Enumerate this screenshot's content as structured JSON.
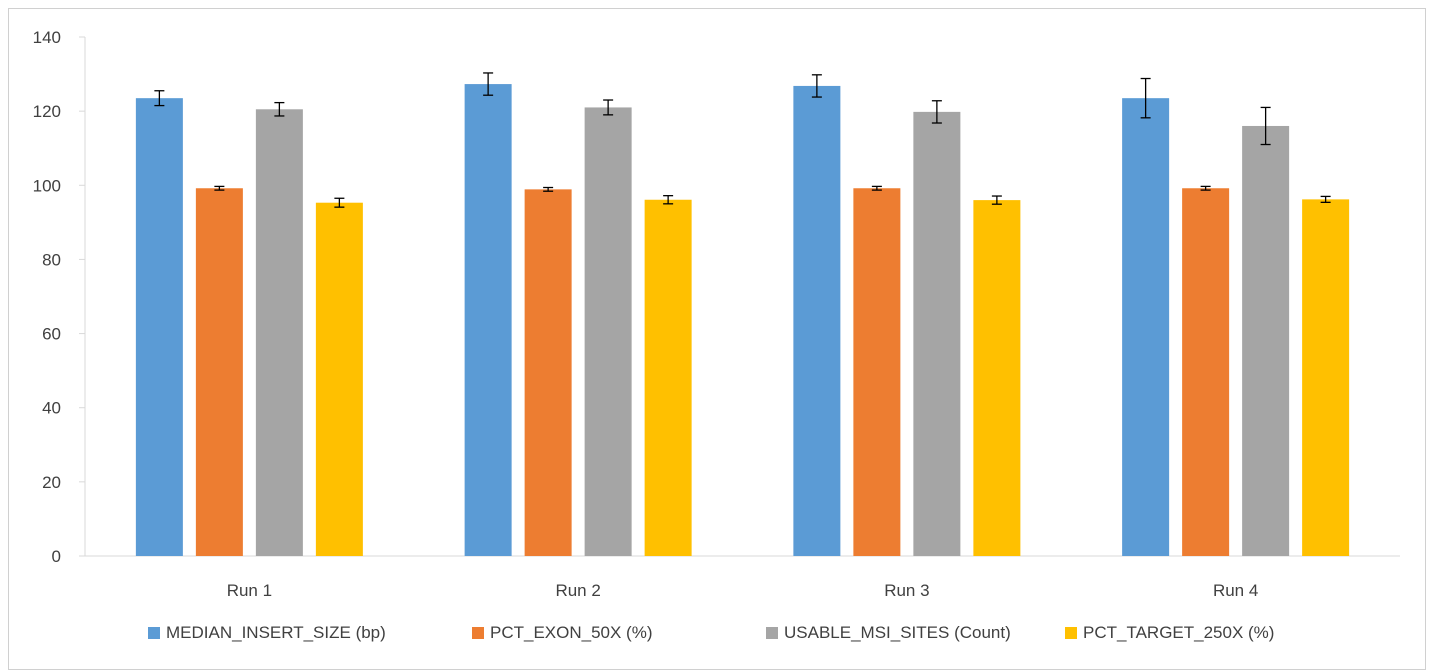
{
  "chart_data": {
    "type": "bar",
    "title": "",
    "xlabel": "",
    "ylabel": "",
    "categories": [
      "Run 1",
      "Run 2",
      "Run 3",
      "Run 4"
    ],
    "ylim": [
      0,
      140
    ],
    "yticks": [
      0,
      20,
      40,
      60,
      80,
      100,
      120,
      140
    ],
    "grid": false,
    "legend_position": "bottom",
    "series": [
      {
        "name": "MEDIAN_INSERT_SIZE (bp)",
        "color": "#5B9BD5",
        "values": [
          123.5,
          127.3,
          126.8,
          123.5
        ],
        "errors": [
          2.0,
          3.0,
          3.0,
          5.3
        ]
      },
      {
        "name": "PCT_EXON_50X (%)",
        "color": "#ED7D31",
        "values": [
          99.2,
          98.9,
          99.2,
          99.2
        ],
        "errors": [
          0.5,
          0.5,
          0.5,
          0.5
        ]
      },
      {
        "name": "USABLE_MSI_SITES (Count)",
        "color": "#A5A5A5",
        "values": [
          120.5,
          121.0,
          119.8,
          116.0
        ],
        "errors": [
          1.8,
          2.0,
          3.0,
          5.0
        ]
      },
      {
        "name": "PCT_TARGET_250X (%)",
        "color": "#FFC000",
        "values": [
          95.3,
          96.1,
          96.0,
          96.2
        ],
        "errors": [
          1.2,
          1.1,
          1.1,
          0.8
        ]
      }
    ]
  }
}
